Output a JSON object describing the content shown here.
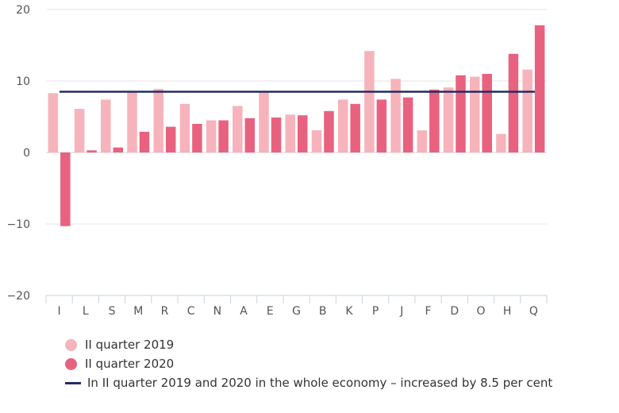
{
  "chart_data": {
    "type": "bar",
    "title": "",
    "xlabel": "",
    "ylabel": "",
    "ylim": [
      -20,
      20
    ],
    "yticks": [
      20,
      10,
      0,
      -10,
      -20
    ],
    "ytick_labels": [
      "20",
      "10",
      "0",
      "−10",
      "−20"
    ],
    "categories": [
      "I",
      "L",
      "S",
      "M",
      "R",
      "C",
      "N",
      "A",
      "E",
      "G",
      "B",
      "K",
      "P",
      "J",
      "F",
      "D",
      "O",
      "H",
      "Q"
    ],
    "series": [
      {
        "name": "II quarter 2019",
        "color": "#f7b3bb",
        "values": [
          8.3,
          6.1,
          7.4,
          8.6,
          8.9,
          6.8,
          4.5,
          6.5,
          8.5,
          5.3,
          3.1,
          7.4,
          14.2,
          10.3,
          3.1,
          9.1,
          10.6,
          2.6,
          11.6
        ]
      },
      {
        "name": "II quarter 2020",
        "color": "#e8627f",
        "values": [
          -10.3,
          0.3,
          0.7,
          2.9,
          3.6,
          4.0,
          4.5,
          4.8,
          4.9,
          5.2,
          5.8,
          6.8,
          7.4,
          7.7,
          8.8,
          10.8,
          11.0,
          13.8,
          17.8
        ]
      }
    ],
    "reference_line": {
      "label": "In II quarter 2019 and 2020 in the whole economy – increased by 8.5 per cent",
      "value": 8.5,
      "color": "#232c63"
    },
    "grid": true,
    "legend_position": "bottom-left"
  }
}
